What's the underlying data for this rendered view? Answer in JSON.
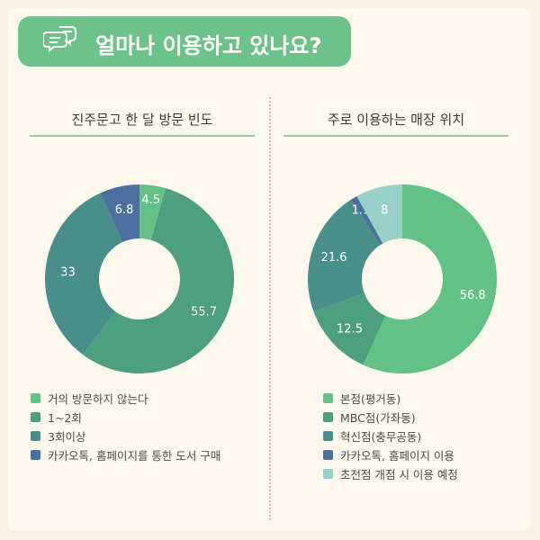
{
  "header": {
    "title": "얼마나 이용하고 있나요?"
  },
  "colors": {
    "header_bg": "#6cc289",
    "palette": [
      "#63c186",
      "#4d9f7f",
      "#4a8e8b",
      "#4b6f9e",
      "#98cfc8"
    ]
  },
  "chart_data": [
    {
      "type": "pie",
      "title": "진주문고 한 달 방문 빈도",
      "donut": true,
      "start": "12 o'clock, clockwise",
      "legend_position": "bottom",
      "slices": [
        {
          "label": "거의 방문하지 않는다",
          "value": 4.5,
          "color": "#63c186"
        },
        {
          "label": "1~2회",
          "value": 55.7,
          "color": "#4d9f7f"
        },
        {
          "label": "3회이상",
          "value": 33,
          "color": "#4a8e8b"
        },
        {
          "label": "카카오톡, 홈페이지를 통한 도서 구매",
          "value": 6.8,
          "color": "#4b6f9e"
        }
      ]
    },
    {
      "type": "pie",
      "title": "주로 이용하는 매장 위치",
      "donut": true,
      "start": "12 o'clock, clockwise",
      "legend_position": "bottom",
      "slices": [
        {
          "label": "본점(평거동)",
          "value": 56.8,
          "color": "#63c186"
        },
        {
          "label": "MBC점(가좌동)",
          "value": 12.5,
          "color": "#4d9f7f"
        },
        {
          "label": "혁신점(충무공동)",
          "value": 21.6,
          "color": "#4a8e8b"
        },
        {
          "label": "카카오톡, 홈페이지 이용",
          "value": 1.1,
          "color": "#4b6f9e"
        },
        {
          "label": "초전점 개점 시 이용 예정",
          "value": 8,
          "color": "#98cfc8"
        }
      ]
    }
  ]
}
